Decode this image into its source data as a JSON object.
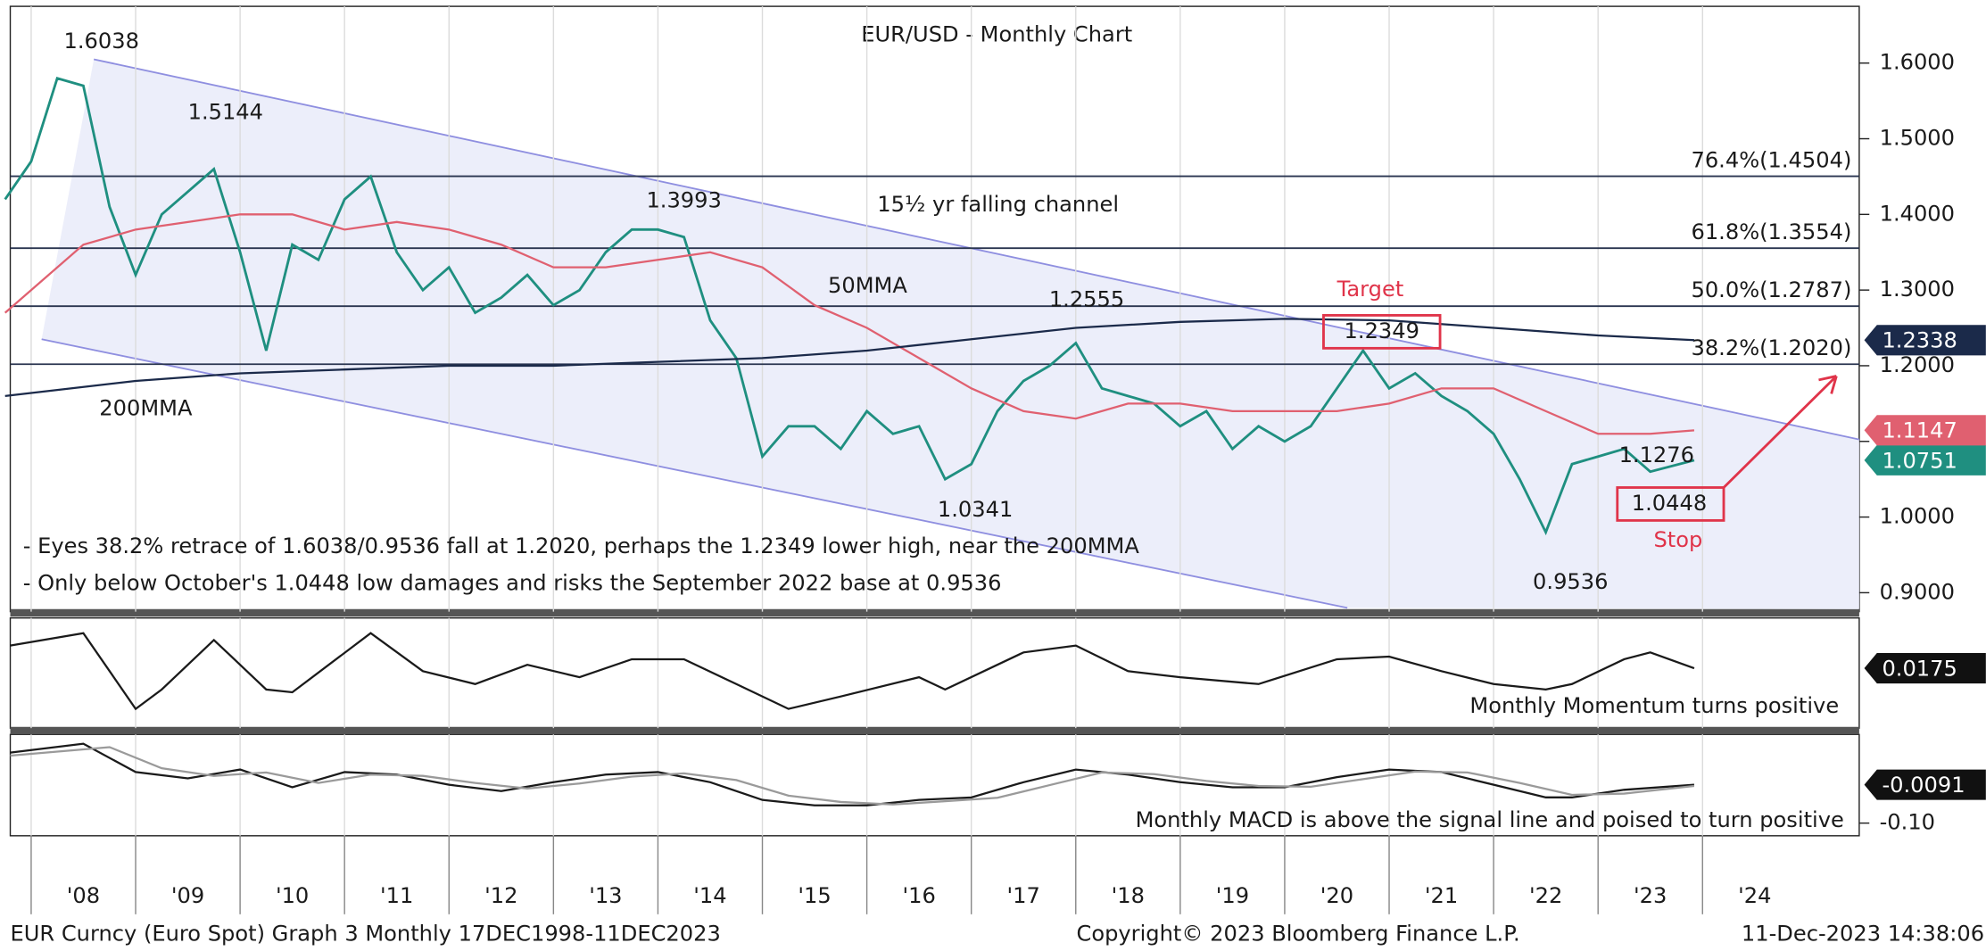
{
  "chart_data": [
    {
      "type": "line",
      "title": "EUR/USD - Monthly Chart",
      "xlim": [
        2007.8,
        2025.5
      ],
      "ylim": [
        0.875,
        1.675
      ],
      "yticks": [
        {
          "value": 0.9,
          "label": "0.9000"
        },
        {
          "value": 1.0,
          "label": "1.0000"
        },
        {
          "value": 1.1,
          "label": "1.1000"
        },
        {
          "value": 1.2,
          "label": "1.2000"
        },
        {
          "value": 1.3,
          "label": "1.3000"
        },
        {
          "value": 1.4,
          "label": "1.4000"
        },
        {
          "value": 1.5,
          "label": "1.5000"
        },
        {
          "value": 1.6,
          "label": "1.6000"
        }
      ],
      "xticks": [
        {
          "value": 2008,
          "label": "'08"
        },
        {
          "value": 2009,
          "label": "'09"
        },
        {
          "value": 2010,
          "label": "'10"
        },
        {
          "value": 2011,
          "label": "'11"
        },
        {
          "value": 2012,
          "label": "'12"
        },
        {
          "value": 2013,
          "label": "'13"
        },
        {
          "value": 2014,
          "label": "'14"
        },
        {
          "value": 2015,
          "label": "'15"
        },
        {
          "value": 2016,
          "label": "'16"
        },
        {
          "value": 2017,
          "label": "'17"
        },
        {
          "value": 2018,
          "label": "'18"
        },
        {
          "value": 2019,
          "label": "'19"
        },
        {
          "value": 2020,
          "label": "'20"
        },
        {
          "value": 2021,
          "label": "'21"
        },
        {
          "value": 2022,
          "label": "'22"
        },
        {
          "value": 2023,
          "label": "'23"
        },
        {
          "value": 2024,
          "label": "'24"
        }
      ],
      "series": [
        {
          "name": "EUR/USD",
          "color": "#1f8f80",
          "x": [
            2007.75,
            2008.0,
            2008.25,
            2008.5,
            2008.75,
            2009.0,
            2009.25,
            2009.5,
            2009.75,
            2010.0,
            2010.25,
            2010.5,
            2010.75,
            2011.0,
            2011.25,
            2011.5,
            2011.75,
            2012.0,
            2012.25,
            2012.5,
            2012.75,
            2013.0,
            2013.25,
            2013.5,
            2013.75,
            2014.0,
            2014.25,
            2014.5,
            2014.75,
            2015.0,
            2015.25,
            2015.5,
            2015.75,
            2016.0,
            2016.25,
            2016.5,
            2016.75,
            2017.0,
            2017.25,
            2017.5,
            2017.75,
            2018.0,
            2018.25,
            2018.5,
            2018.75,
            2019.0,
            2019.25,
            2019.5,
            2019.75,
            2020.0,
            2020.25,
            2020.5,
            2020.75,
            2021.0,
            2021.25,
            2021.5,
            2021.75,
            2022.0,
            2022.25,
            2022.5,
            2022.75,
            2023.0,
            2023.25,
            2023.5,
            2023.92
          ],
          "values": [
            1.42,
            1.47,
            1.58,
            1.57,
            1.41,
            1.32,
            1.4,
            1.43,
            1.46,
            1.35,
            1.22,
            1.36,
            1.34,
            1.42,
            1.45,
            1.35,
            1.3,
            1.33,
            1.27,
            1.29,
            1.32,
            1.28,
            1.3,
            1.35,
            1.38,
            1.38,
            1.37,
            1.26,
            1.21,
            1.08,
            1.12,
            1.12,
            1.09,
            1.14,
            1.11,
            1.12,
            1.05,
            1.07,
            1.14,
            1.18,
            1.2,
            1.23,
            1.17,
            1.16,
            1.15,
            1.12,
            1.14,
            1.09,
            1.12,
            1.1,
            1.12,
            1.17,
            1.22,
            1.17,
            1.19,
            1.16,
            1.14,
            1.11,
            1.05,
            0.98,
            1.07,
            1.08,
            1.09,
            1.06,
            1.0751
          ]
        },
        {
          "name": "50MMA",
          "color": "#e06070",
          "x": [
            2007.75,
            2008.5,
            2009.0,
            2009.5,
            2010.0,
            2010.5,
            2011.0,
            2011.5,
            2012.0,
            2012.5,
            2013.0,
            2013.5,
            2014.0,
            2014.5,
            2015.0,
            2015.5,
            2016.0,
            2016.5,
            2017.0,
            2017.5,
            2018.0,
            2018.5,
            2019.0,
            2019.5,
            2020.0,
            2020.5,
            2021.0,
            2021.5,
            2022.0,
            2022.5,
            2023.0,
            2023.5,
            2023.92
          ],
          "values": [
            1.27,
            1.36,
            1.38,
            1.39,
            1.4,
            1.4,
            1.38,
            1.39,
            1.38,
            1.36,
            1.33,
            1.33,
            1.34,
            1.35,
            1.33,
            1.28,
            1.25,
            1.21,
            1.17,
            1.14,
            1.13,
            1.15,
            1.15,
            1.14,
            1.14,
            1.14,
            1.15,
            1.17,
            1.17,
            1.14,
            1.11,
            1.11,
            1.1147
          ]
        },
        {
          "name": "200MMA",
          "color": "#1b2a4a",
          "x": [
            2007.75,
            2009.0,
            2010.0,
            2011.0,
            2012.0,
            2013.0,
            2014.0,
            2015.0,
            2016.0,
            2017.0,
            2018.0,
            2019.0,
            2020.0,
            2021.0,
            2022.0,
            2023.0,
            2023.92
          ],
          "values": [
            1.16,
            1.18,
            1.19,
            1.195,
            1.2,
            1.2,
            1.205,
            1.21,
            1.22,
            1.235,
            1.25,
            1.258,
            1.262,
            1.26,
            1.25,
            1.24,
            1.2338
          ]
        }
      ],
      "fib_levels": [
        {
          "value": 1.4504,
          "label": "76.4%(1.4504)"
        },
        {
          "value": 1.3554,
          "label": "61.8%(1.3554)"
        },
        {
          "value": 1.2787,
          "label": "50.0%(1.2787)"
        },
        {
          "value": 1.202,
          "label": "38.2%(1.2020)"
        }
      ],
      "channel": {
        "upper": {
          "x": [
            2008.6,
            2025.5
          ],
          "y": [
            1.605,
            1.1025
          ]
        },
        "lower": {
          "x": [
            2008.1,
            2020.6
          ],
          "y": [
            1.235,
            0.88
          ]
        }
      },
      "annotations": [
        "1.6038",
        "1.5144",
        "1.3993",
        "1.2555",
        "Target",
        "1.2349",
        "1.1276",
        "1.0341",
        "1.0448",
        "Stop",
        "0.9536",
        "15½ yr falling channel",
        "50MMA",
        "200MMA"
      ],
      "notes": [
        "- Eyes 38.2% retrace of 1.6038/0.9536 fall at 1.2020, perhaps the 1.2349 lower high, near the 200MMA",
        "- Only below October's 1.0448 low damages and risks the September 2022 base at 0.9536"
      ]
    },
    {
      "type": "line",
      "xlim": [
        2007.8,
        2025.5
      ],
      "ylim": [
        -0.2,
        0.2
      ],
      "annotation": "Monthly Momentum turns positive",
      "series": [
        {
          "name": "Momentum",
          "color": "#1a1a1a",
          "x": [
            2007.8,
            2008.5,
            2009.0,
            2009.25,
            2009.75,
            2010.25,
            2010.5,
            2011.25,
            2011.75,
            2012.25,
            2012.75,
            2013.25,
            2013.75,
            2014.25,
            2014.75,
            2015.25,
            2015.75,
            2016.5,
            2016.75,
            2017.5,
            2018.0,
            2018.5,
            2019.0,
            2019.75,
            2020.5,
            2021.0,
            2021.5,
            2022.0,
            2022.5,
            2022.75,
            2023.25,
            2023.5,
            2023.92
          ],
          "values": [
            0.1,
            0.145,
            -0.13,
            -0.06,
            0.12,
            -0.06,
            -0.07,
            0.145,
            0.007,
            -0.04,
            0.03,
            -0.015,
            0.05,
            0.05,
            -0.04,
            -0.13,
            -0.085,
            -0.015,
            -0.06,
            0.075,
            0.1,
            0.007,
            -0.015,
            -0.04,
            0.05,
            0.06,
            0.007,
            -0.04,
            -0.06,
            -0.04,
            0.05,
            0.075,
            0.0175
          ]
        }
      ]
    },
    {
      "type": "line",
      "xlim": [
        2007.8,
        2025.5
      ],
      "ylim": [
        -0.13,
        0.11
      ],
      "yticks": [
        {
          "value": -0.1,
          "label": "-0.10"
        }
      ],
      "annotation": "Monthly MACD is above the signal line and poised to turn positive",
      "series": [
        {
          "name": "MACD",
          "color": "#1a1a1a",
          "x": [
            2007.8,
            2008.5,
            2009.0,
            2009.5,
            2010.0,
            2010.5,
            2011.0,
            2011.5,
            2012.0,
            2012.5,
            2013.0,
            2013.5,
            2014.0,
            2014.5,
            2015.0,
            2015.5,
            2016.0,
            2016.5,
            2017.0,
            2017.5,
            2018.0,
            2018.5,
            2019.0,
            2019.5,
            2020.0,
            2020.5,
            2021.0,
            2021.5,
            2022.0,
            2022.5,
            2022.75,
            2023.25,
            2023.92
          ],
          "values": [
            0.067,
            0.088,
            0.021,
            0.006,
            0.027,
            -0.015,
            0.021,
            0.015,
            -0.009,
            -0.024,
            -0.003,
            0.015,
            0.021,
            -0.003,
            -0.045,
            -0.058,
            -0.058,
            -0.045,
            -0.039,
            -0.003,
            0.027,
            0.015,
            -0.003,
            -0.015,
            -0.015,
            0.009,
            0.027,
            0.021,
            -0.009,
            -0.039,
            -0.039,
            -0.021,
            -0.0091
          ]
        },
        {
          "name": "Signal",
          "color": "#9a9a9a",
          "x": [
            2007.8,
            2008.75,
            2009.25,
            2009.75,
            2010.25,
            2010.75,
            2011.25,
            2011.75,
            2012.25,
            2012.75,
            2013.25,
            2013.75,
            2014.25,
            2014.75,
            2015.25,
            2015.75,
            2016.25,
            2016.75,
            2017.25,
            2017.75,
            2018.25,
            2018.75,
            2019.25,
            2019.75,
            2020.25,
            2020.75,
            2021.25,
            2021.75,
            2022.25,
            2022.75,
            2023.25,
            2023.92
          ],
          "values": [
            0.06,
            0.08,
            0.03,
            0.012,
            0.02,
            -0.005,
            0.015,
            0.012,
            -0.005,
            -0.018,
            -0.006,
            0.01,
            0.018,
            0.002,
            -0.035,
            -0.05,
            -0.056,
            -0.048,
            -0.04,
            -0.01,
            0.02,
            0.016,
            0.0,
            -0.012,
            -0.014,
            0.004,
            0.022,
            0.02,
            -0.005,
            -0.033,
            -0.03,
            -0.012
          ]
        }
      ]
    }
  ],
  "footer": [
    "EUR Curncy (Euro Spot) Graph 3  Monthly 17DEC1998-11DEC2023",
    "Copyright© 2023 Bloomberg Finance L.P.",
    "11-Dec-2023 14:38:06"
  ]
}
